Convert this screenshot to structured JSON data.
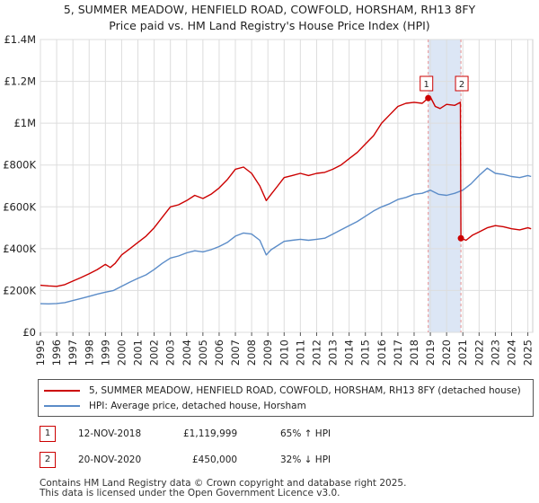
{
  "header": {
    "title_line1": "5, SUMMER MEADOW, HENFIELD ROAD, COWFOLD, HORSHAM, RH13 8FY",
    "title_line2": "Price paid vs. HM Land Registry's House Price Index (HPI)"
  },
  "chart_data": {
    "type": "line",
    "ylim": [
      0,
      1400000
    ],
    "xlim": [
      1995,
      2025.3
    ],
    "y_ticks": [
      0,
      200000,
      400000,
      600000,
      800000,
      1000000,
      1200000,
      1400000
    ],
    "y_tick_labels": [
      "£0",
      "£200K",
      "£400K",
      "£600K",
      "£800K",
      "£1M",
      "£1.2M",
      "£1.4M"
    ],
    "x_ticks": [
      1995,
      1996,
      1997,
      1998,
      1999,
      2000,
      2001,
      2002,
      2003,
      2004,
      2005,
      2006,
      2007,
      2008,
      2009,
      2010,
      2011,
      2012,
      2013,
      2014,
      2015,
      2016,
      2017,
      2018,
      2019,
      2020,
      2021,
      2022,
      2023,
      2024,
      2025
    ],
    "grid": true,
    "colors": {
      "property": "#cc0000",
      "hpi": "#5b8cc8",
      "shade": "#dce6f5",
      "marker_line": "#e89090"
    },
    "series": [
      {
        "name": "5, SUMMER MEADOW, HENFIELD ROAD, COWFOLD, HORSHAM, RH13 8FY (detached house)",
        "color": "#cc0000",
        "points": [
          [
            1995,
            225000
          ],
          [
            1995.5,
            222000
          ],
          [
            1996,
            220000
          ],
          [
            1996.5,
            228000
          ],
          [
            1997,
            245000
          ],
          [
            1997.5,
            262000
          ],
          [
            1998,
            280000
          ],
          [
            1998.5,
            300000
          ],
          [
            1999,
            325000
          ],
          [
            1999.3,
            310000
          ],
          [
            1999.6,
            330000
          ],
          [
            2000,
            370000
          ],
          [
            2000.5,
            400000
          ],
          [
            2001,
            430000
          ],
          [
            2001.5,
            460000
          ],
          [
            2002,
            500000
          ],
          [
            2002.5,
            550000
          ],
          [
            2003,
            600000
          ],
          [
            2003.5,
            610000
          ],
          [
            2004,
            630000
          ],
          [
            2004.5,
            655000
          ],
          [
            2005,
            640000
          ],
          [
            2005.5,
            660000
          ],
          [
            2006,
            690000
          ],
          [
            2006.5,
            730000
          ],
          [
            2007,
            780000
          ],
          [
            2007.5,
            790000
          ],
          [
            2008,
            760000
          ],
          [
            2008.5,
            700000
          ],
          [
            2008.9,
            630000
          ],
          [
            2009.2,
            660000
          ],
          [
            2009.6,
            700000
          ],
          [
            2010,
            740000
          ],
          [
            2010.5,
            750000
          ],
          [
            2011,
            760000
          ],
          [
            2011.5,
            750000
          ],
          [
            2012,
            760000
          ],
          [
            2012.5,
            765000
          ],
          [
            2013,
            780000
          ],
          [
            2013.5,
            800000
          ],
          [
            2014,
            830000
          ],
          [
            2014.5,
            860000
          ],
          [
            2015,
            900000
          ],
          [
            2015.5,
            940000
          ],
          [
            2016,
            1000000
          ],
          [
            2016.5,
            1040000
          ],
          [
            2017,
            1080000
          ],
          [
            2017.5,
            1095000
          ],
          [
            2018,
            1100000
          ],
          [
            2018.5,
            1095000
          ],
          [
            2018.87,
            1119999
          ],
          [
            2019,
            1125000
          ],
          [
            2019.3,
            1080000
          ],
          [
            2019.6,
            1070000
          ],
          [
            2020,
            1090000
          ],
          [
            2020.5,
            1085000
          ],
          [
            2020.85,
            1100000
          ],
          [
            2020.88,
            450000
          ],
          [
            2021.2,
            440000
          ],
          [
            2021.6,
            465000
          ],
          [
            2022,
            480000
          ],
          [
            2022.5,
            500000
          ],
          [
            2023,
            510000
          ],
          [
            2023.5,
            505000
          ],
          [
            2024,
            495000
          ],
          [
            2024.5,
            490000
          ],
          [
            2025,
            500000
          ],
          [
            2025.2,
            495000
          ]
        ]
      },
      {
        "name": "HPI: Average price, detached house, Horsham",
        "color": "#5b8cc8",
        "points": [
          [
            1995,
            137000
          ],
          [
            1995.5,
            136000
          ],
          [
            1996,
            138000
          ],
          [
            1996.5,
            142000
          ],
          [
            1997,
            152000
          ],
          [
            1997.5,
            162000
          ],
          [
            1998,
            172000
          ],
          [
            1998.5,
            183000
          ],
          [
            1999,
            192000
          ],
          [
            1999.5,
            200000
          ],
          [
            2000,
            220000
          ],
          [
            2000.5,
            240000
          ],
          [
            2001,
            258000
          ],
          [
            2001.5,
            275000
          ],
          [
            2002,
            300000
          ],
          [
            2002.5,
            330000
          ],
          [
            2003,
            355000
          ],
          [
            2003.5,
            365000
          ],
          [
            2004,
            380000
          ],
          [
            2004.5,
            390000
          ],
          [
            2005,
            385000
          ],
          [
            2005.5,
            395000
          ],
          [
            2006,
            410000
          ],
          [
            2006.5,
            430000
          ],
          [
            2007,
            460000
          ],
          [
            2007.5,
            475000
          ],
          [
            2008,
            470000
          ],
          [
            2008.5,
            440000
          ],
          [
            2008.9,
            370000
          ],
          [
            2009.2,
            395000
          ],
          [
            2009.6,
            415000
          ],
          [
            2010,
            435000
          ],
          [
            2010.5,
            440000
          ],
          [
            2011,
            445000
          ],
          [
            2011.5,
            440000
          ],
          [
            2012,
            445000
          ],
          [
            2012.5,
            450000
          ],
          [
            2013,
            470000
          ],
          [
            2013.5,
            490000
          ],
          [
            2014,
            510000
          ],
          [
            2014.5,
            530000
          ],
          [
            2015,
            555000
          ],
          [
            2015.5,
            580000
          ],
          [
            2016,
            600000
          ],
          [
            2016.5,
            615000
          ],
          [
            2017,
            635000
          ],
          [
            2017.5,
            645000
          ],
          [
            2018,
            660000
          ],
          [
            2018.5,
            665000
          ],
          [
            2019,
            680000
          ],
          [
            2019.5,
            660000
          ],
          [
            2020,
            655000
          ],
          [
            2020.5,
            665000
          ],
          [
            2021,
            680000
          ],
          [
            2021.5,
            710000
          ],
          [
            2022,
            750000
          ],
          [
            2022.5,
            785000
          ],
          [
            2023,
            760000
          ],
          [
            2023.5,
            755000
          ],
          [
            2024,
            745000
          ],
          [
            2024.5,
            740000
          ],
          [
            2025,
            750000
          ],
          [
            2025.2,
            745000
          ]
        ]
      }
    ],
    "annotations": [
      {
        "label": "1",
        "x": 2018.87,
        "y": 1119999
      },
      {
        "label": "2",
        "x": 2020.88,
        "y": 450000
      }
    ],
    "shaded_span": [
      2018.87,
      2020.88
    ]
  },
  "legend": {
    "property_label": "5, SUMMER MEADOW, HENFIELD ROAD, COWFOLD, HORSHAM, RH13 8FY (detached house)",
    "hpi_label": "HPI: Average price, detached house, Horsham"
  },
  "transactions": [
    {
      "num": "1",
      "date": "12-NOV-2018",
      "price": "£1,119,999",
      "hpi_change": "65% ↑ HPI"
    },
    {
      "num": "2",
      "date": "20-NOV-2020",
      "price": "£450,000",
      "hpi_change": "32% ↓ HPI"
    }
  ],
  "footer": {
    "line1": "Contains HM Land Registry data © Crown copyright and database right 2025.",
    "line2": "This data is licensed under the Open Government Licence v3.0."
  }
}
